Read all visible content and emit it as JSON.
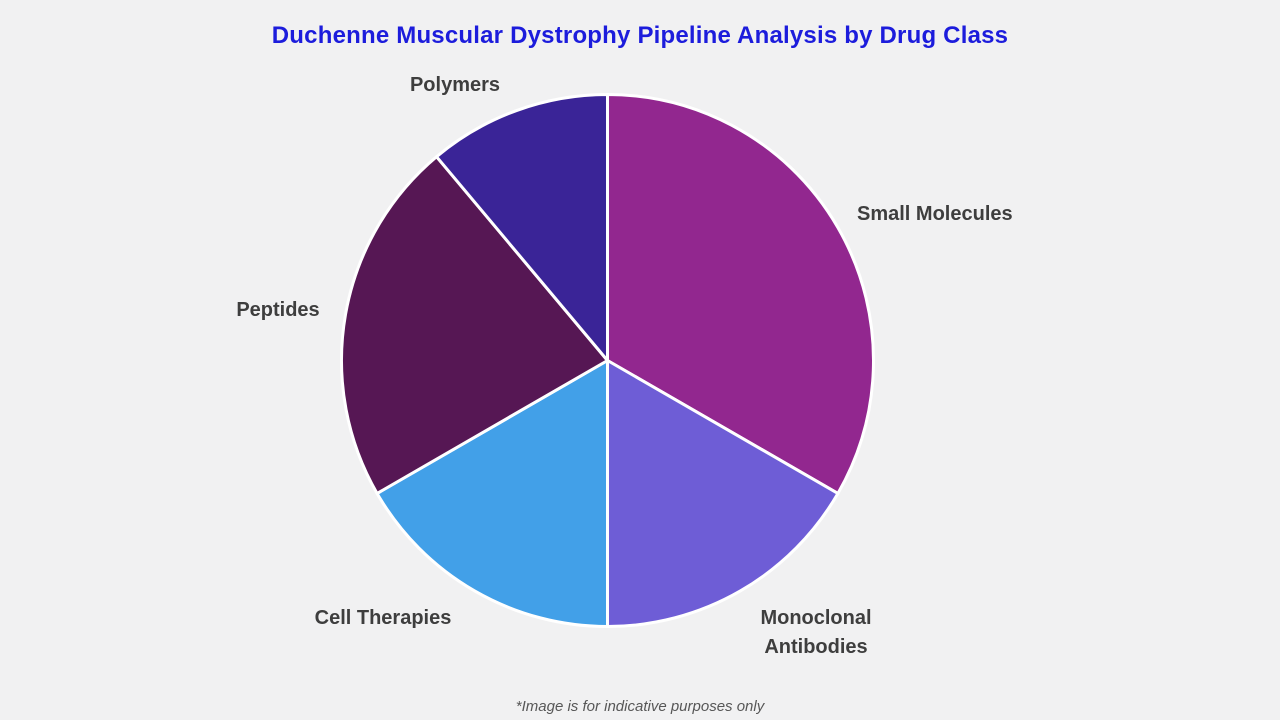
{
  "title": "Duchenne Muscular Dystrophy Pipeline Analysis by Drug Class",
  "footnote": "*Image is for indicative purposes only",
  "title_color": "#1c1cdc",
  "background_color": "#f1f1f2",
  "label_color": "#3e3e3e",
  "chart_data": {
    "type": "pie",
    "title": "Duchenne Muscular Dystrophy Pipeline Analysis by Drug Class",
    "categories": [
      "Small Molecules",
      "Monoclonal Antibodies",
      "Cell Therapies",
      "Peptides",
      "Polymers"
    ],
    "values": [
      33.33,
      16.67,
      16.67,
      22.22,
      11.11
    ],
    "colors": [
      "#92278F",
      "#6E5DD6",
      "#42A0E8",
      "#561754",
      "#3A2497"
    ],
    "start_angle_deg": 0,
    "direction": "clockwise",
    "slice_border_color": "#ffffff",
    "legend_position": "outside-labels",
    "annotations": []
  }
}
